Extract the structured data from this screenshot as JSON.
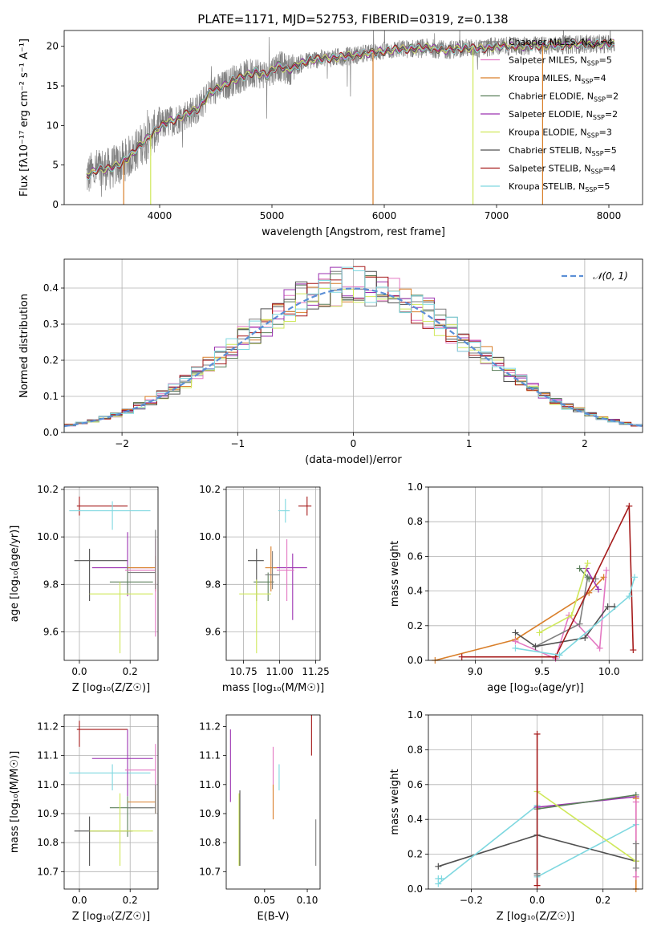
{
  "title": "PLATE=1171, MJD=52753, FIBERID=0319, z=0.138",
  "colors": {
    "chabrier_miles": "#7f7f7f",
    "salpeter_miles": "#e377c2",
    "kroupa_miles": "#d97f2a",
    "chabrier_elodie": "#5b7f5b",
    "salpeter_elodie": "#9b30b0",
    "kroupa_elodie": "#cfe85a",
    "chabrier_stelib": "#505050",
    "salpeter_stelib": "#a51a1a",
    "kroupa_stelib": "#7fd8e0",
    "normal": "#5b8fd6",
    "spectrum": "#808080"
  },
  "chart_data": [
    {
      "id": "spectrum",
      "type": "line",
      "title": "PLATE=1171, MJD=52753, FIBERID=0319, z=0.138",
      "xlabel": "wavelength [Angstrom, rest frame]",
      "ylabel": "Flux [fλ10⁻¹⁷ erg cm⁻² s⁻¹ A⁻¹]",
      "xlim": [
        3150,
        8300
      ],
      "ylim": [
        0,
        22
      ],
      "xticks": [
        4000,
        5000,
        6000,
        7000,
        8000
      ],
      "yticks": [
        0,
        5,
        10,
        15,
        20
      ],
      "grid": false,
      "legend_placement": "right",
      "legend": [
        {
          "name": "Chabrier MILES, N",
          "sub": "SSP",
          "suffix": "=4",
          "color": "chabrier_miles"
        },
        {
          "name": "Salpeter MILES, N",
          "sub": "SSP",
          "suffix": "=5",
          "color": "salpeter_miles"
        },
        {
          "name": "Kroupa MILES, N",
          "sub": "SSP",
          "suffix": "=4",
          "color": "kroupa_miles"
        },
        {
          "name": "Chabrier ELODIE, N",
          "sub": "SSP",
          "suffix": "=2",
          "color": "chabrier_elodie"
        },
        {
          "name": "Salpeter ELODIE, N",
          "sub": "SSP",
          "suffix": "=2",
          "color": "salpeter_elodie"
        },
        {
          "name": "Kroupa ELODIE, N",
          "sub": "SSP",
          "suffix": "=3",
          "color": "kroupa_elodie"
        },
        {
          "name": "Chabrier STELIB, N",
          "sub": "SSP",
          "suffix": "=5",
          "color": "chabrier_stelib"
        },
        {
          "name": "Salpeter STELIB, N",
          "sub": "SSP",
          "suffix": "=4",
          "color": "salpeter_stelib"
        },
        {
          "name": "Kroupa STELIB, N",
          "sub": "SSP",
          "suffix": "=5",
          "color": "kroupa_stelib"
        }
      ],
      "continuum": [
        [
          3350,
          3.6
        ],
        [
          3450,
          4.5
        ],
        [
          3550,
          4.5
        ],
        [
          3650,
          5.2
        ],
        [
          3750,
          6.3
        ],
        [
          3850,
          7.8
        ],
        [
          3950,
          9.2
        ],
        [
          4050,
          10.3
        ],
        [
          4150,
          10.8
        ],
        [
          4250,
          11.5
        ],
        [
          4350,
          12.2
        ],
        [
          4450,
          14.2
        ],
        [
          4550,
          14.8
        ],
        [
          4650,
          15.7
        ],
        [
          4750,
          16.2
        ],
        [
          4850,
          16.8
        ],
        [
          4950,
          16.3
        ],
        [
          5050,
          17.6
        ],
        [
          5150,
          17.0
        ],
        [
          5250,
          17.8
        ],
        [
          5350,
          18.3
        ],
        [
          5500,
          18.5
        ],
        [
          5650,
          18.7
        ],
        [
          5800,
          19.0
        ],
        [
          5950,
          19.3
        ],
        [
          6100,
          19.6
        ],
        [
          6250,
          19.7
        ],
        [
          6400,
          19.8
        ],
        [
          6550,
          19.5
        ],
        [
          6700,
          19.8
        ],
        [
          6850,
          19.7
        ],
        [
          7000,
          20.0
        ],
        [
          7200,
          20.0
        ],
        [
          7400,
          20.1
        ],
        [
          7600,
          20.2
        ],
        [
          7800,
          20.3
        ],
        [
          8050,
          20.3
        ]
      ],
      "model_dropouts_x": [
        3680,
        3920,
        5900,
        6790,
        7410
      ]
    },
    {
      "id": "residuals",
      "type": "histogram",
      "xlabel": "(data-model)/error",
      "ylabel": "Normed distribution",
      "xlim": [
        -2.5,
        2.5
      ],
      "ylim": [
        0,
        0.48
      ],
      "xticks": [
        -2,
        -1,
        0,
        1,
        2
      ],
      "yticks": [
        0.0,
        0.1,
        0.2,
        0.3,
        0.4
      ],
      "grid": true,
      "legend_placement": "top-right",
      "normal_label": "𝒩(0, 1)",
      "bin_width": 0.1,
      "bins_start": -2.5
    },
    {
      "id": "age_vs_z",
      "type": "errorbar",
      "xlabel": "Z [log₁₀(Z/Z☉)]",
      "ylabel": "age  [log₁₀(age/yr)]",
      "xlim": [
        -0.06,
        0.31
      ],
      "ylim": [
        9.48,
        10.21
      ],
      "xticks": [
        0.0,
        0.2
      ],
      "yticks": [
        9.6,
        9.8,
        10.0,
        10.2
      ],
      "grid": true,
      "points": [
        {
          "c": "salpeter_stelib",
          "x": 0.0,
          "xl": -0.01,
          "xh": 0.19,
          "y": 10.13,
          "yl": 10.09,
          "yh": 10.17
        },
        {
          "c": "kroupa_stelib",
          "x": 0.13,
          "xl": -0.04,
          "xh": 0.28,
          "y": 10.11,
          "yl": 10.03,
          "yh": 10.15
        },
        {
          "c": "chabrier_stelib",
          "x": 0.04,
          "xl": -0.02,
          "xh": 0.19,
          "y": 9.9,
          "yl": 9.73,
          "yh": 9.95
        },
        {
          "c": "salpeter_elodie",
          "x": 0.19,
          "xl": 0.05,
          "xh": 0.29,
          "y": 9.87,
          "yl": 9.75,
          "yh": 10.02
        },
        {
          "c": "chabrier_elodie",
          "x": 0.19,
          "xl": 0.12,
          "xh": 0.29,
          "y": 9.81,
          "yl": 9.76,
          "yh": 9.88
        },
        {
          "c": "kroupa_elodie",
          "x": 0.16,
          "xl": 0.04,
          "xh": 0.29,
          "y": 9.76,
          "yl": 9.51,
          "yh": 9.81
        },
        {
          "c": "kroupa_miles",
          "x": 0.3,
          "xl": 0.19,
          "xh": 0.3,
          "y": 9.87,
          "yl": 9.77,
          "yh": 9.92
        },
        {
          "c": "salpeter_miles",
          "x": 0.3,
          "xl": 0.18,
          "xh": 0.3,
          "y": 9.86,
          "yl": 9.58,
          "yh": 9.99
        },
        {
          "c": "chabrier_miles",
          "x": 0.3,
          "xl": 0.19,
          "xh": 0.3,
          "y": 9.85,
          "yl": 9.78,
          "yh": 10.03
        }
      ]
    },
    {
      "id": "age_vs_mass",
      "type": "errorbar",
      "xlabel": "mass [log₁₀(M/M☉)]",
      "ylabel": "",
      "xlim": [
        10.63,
        11.28
      ],
      "ylim": [
        9.48,
        10.21
      ],
      "xticks": [
        10.75,
        11.0,
        11.25
      ],
      "yticks": [
        9.6,
        9.8,
        10.0,
        10.2
      ],
      "grid": true,
      "points": [
        {
          "c": "salpeter_stelib",
          "x": 11.19,
          "xl": 11.13,
          "xh": 11.22,
          "y": 10.13,
          "yl": 10.09,
          "yh": 10.17
        },
        {
          "c": "kroupa_stelib",
          "x": 11.04,
          "xl": 10.99,
          "xh": 11.07,
          "y": 10.11,
          "yl": 10.06,
          "yh": 10.16
        },
        {
          "c": "chabrier_stelib",
          "x": 10.84,
          "xl": 10.78,
          "xh": 10.89,
          "y": 9.9,
          "yl": 9.73,
          "yh": 9.95
        },
        {
          "c": "salpeter_elodie",
          "x": 11.09,
          "xl": 10.96,
          "xh": 11.19,
          "y": 9.87,
          "yl": 9.65,
          "yh": 9.93
        },
        {
          "c": "chabrier_elodie",
          "x": 10.92,
          "xl": 10.82,
          "xh": 10.96,
          "y": 9.81,
          "yl": 9.73,
          "yh": 9.85
        },
        {
          "c": "kroupa_elodie",
          "x": 10.84,
          "xl": 10.72,
          "xh": 10.94,
          "y": 9.76,
          "yl": 9.51,
          "yh": 9.82
        },
        {
          "c": "kroupa_miles",
          "x": 10.94,
          "xl": 10.9,
          "xh": 10.98,
          "y": 9.87,
          "yl": 9.77,
          "yh": 9.96
        },
        {
          "c": "salpeter_miles",
          "x": 11.05,
          "xl": 10.98,
          "xh": 11.1,
          "y": 9.86,
          "yl": 9.73,
          "yh": 9.99
        },
        {
          "c": "chabrier_miles",
          "x": 10.95,
          "xl": 10.9,
          "xh": 11.0,
          "y": 9.84,
          "yl": 9.78,
          "yh": 9.94
        }
      ]
    },
    {
      "id": "massweight_vs_age",
      "type": "line",
      "xlabel": "age  [log₁₀(age/yr)]",
      "ylabel": "mass weight",
      "xlim": [
        8.65,
        10.25
      ],
      "ylim": [
        0,
        1.0
      ],
      "xticks": [
        9.0,
        9.5,
        10.0
      ],
      "yticks": [
        0.0,
        0.2,
        0.4,
        0.6,
        0.8,
        1.0
      ],
      "grid": true,
      "series": [
        {
          "c": "kroupa_miles",
          "pts": [
            [
              8.7,
              0.0
            ],
            [
              9.3,
              0.12
            ],
            [
              9.85,
              0.39
            ],
            [
              9.96,
              0.48
            ]
          ]
        },
        {
          "c": "salpeter_miles",
          "pts": [
            [
              9.3,
              0.11
            ],
            [
              9.6,
              0.01
            ],
            [
              9.7,
              0.26
            ],
            [
              9.93,
              0.07
            ],
            [
              9.98,
              0.52
            ]
          ]
        },
        {
          "c": "chabrier_miles",
          "pts": [
            [
              9.45,
              0.08
            ],
            [
              9.78,
              0.21
            ],
            [
              9.84,
              0.48
            ],
            [
              9.9,
              0.47
            ]
          ]
        },
        {
          "c": "chabrier_elodie",
          "pts": [
            [
              9.78,
              0.53
            ],
            [
              9.85,
              0.47
            ]
          ]
        },
        {
          "c": "salpeter_elodie",
          "pts": [
            [
              9.83,
              0.53
            ],
            [
              9.92,
              0.41
            ]
          ]
        },
        {
          "c": "kroupa_elodie",
          "pts": [
            [
              9.48,
              0.16
            ],
            [
              9.72,
              0.26
            ],
            [
              9.84,
              0.56
            ]
          ]
        },
        {
          "c": "chabrier_stelib",
          "pts": [
            [
              9.3,
              0.16
            ],
            [
              9.45,
              0.08
            ],
            [
              9.82,
              0.13
            ],
            [
              9.99,
              0.31
            ],
            [
              10.04,
              0.31
            ]
          ]
        },
        {
          "c": "salpeter_stelib",
          "pts": [
            [
              8.9,
              0.02
            ],
            [
              9.6,
              0.02
            ],
            [
              10.15,
              0.89
            ],
            [
              10.18,
              0.06
            ]
          ]
        },
        {
          "c": "kroupa_stelib",
          "pts": [
            [
              9.3,
              0.07
            ],
            [
              9.63,
              0.03
            ],
            [
              10.15,
              0.37
            ],
            [
              10.19,
              0.48
            ]
          ]
        }
      ]
    },
    {
      "id": "mass_vs_z",
      "type": "errorbar",
      "xlabel": "Z [log₁₀(Z/Z☉)]",
      "ylabel": "mass [log₁₀(M/M☉)]",
      "xlim": [
        -0.06,
        0.31
      ],
      "ylim": [
        10.64,
        11.24
      ],
      "xticks": [
        0.0,
        0.2
      ],
      "yticks": [
        10.7,
        10.8,
        10.9,
        11.0,
        11.1,
        11.2
      ],
      "grid": true,
      "points": [
        {
          "c": "salpeter_stelib",
          "x": 0.0,
          "xl": -0.01,
          "xh": 0.19,
          "y": 11.19,
          "yl": 11.13,
          "yh": 11.22
        },
        {
          "c": "kroupa_stelib",
          "x": 0.13,
          "xl": -0.04,
          "xh": 0.28,
          "y": 11.04,
          "yl": 10.98,
          "yh": 11.07
        },
        {
          "c": "chabrier_stelib",
          "x": 0.04,
          "xl": -0.02,
          "xh": 0.21,
          "y": 10.84,
          "yl": 10.72,
          "yh": 10.89
        },
        {
          "c": "salpeter_elodie",
          "x": 0.19,
          "xl": 0.05,
          "xh": 0.29,
          "y": 11.09,
          "yl": 10.96,
          "yh": 11.19
        },
        {
          "c": "chabrier_elodie",
          "x": 0.19,
          "xl": 0.12,
          "xh": 0.29,
          "y": 10.92,
          "yl": 10.82,
          "yh": 10.96
        },
        {
          "c": "kroupa_elodie",
          "x": 0.16,
          "xl": 0.04,
          "xh": 0.29,
          "y": 10.84,
          "yl": 10.72,
          "yh": 10.97
        },
        {
          "c": "kroupa_miles",
          "x": 0.3,
          "xl": 0.19,
          "xh": 0.3,
          "y": 10.94,
          "yl": 10.9,
          "yh": 10.98
        },
        {
          "c": "salpeter_miles",
          "x": 0.3,
          "xl": 0.18,
          "xh": 0.3,
          "y": 11.05,
          "yl": 10.98,
          "yh": 11.14
        },
        {
          "c": "chabrier_miles",
          "x": 0.3,
          "xl": 0.19,
          "xh": 0.3,
          "y": 10.92,
          "yl": 10.9,
          "yh": 11.0
        }
      ]
    },
    {
      "id": "mass_vs_ebv",
      "type": "errorbar",
      "xlabel": "E(B-V)",
      "ylabel": "",
      "xlim": [
        0.005,
        0.115
      ],
      "ylim": [
        10.64,
        11.24
      ],
      "xticks": [
        0.05,
        0.1
      ],
      "yticks": [
        10.7,
        10.8,
        10.9,
        11.0,
        11.1,
        11.2
      ],
      "grid": false,
      "points": [
        {
          "c": "salpeter_elodie",
          "x": 0.01,
          "xl": 0.01,
          "xh": 0.01,
          "y": 11.09,
          "yl": 10.94,
          "yh": 11.19
        },
        {
          "c": "kroupa_elodie",
          "x": 0.02,
          "xl": 0.02,
          "xh": 0.02,
          "y": 10.84,
          "yl": 10.72,
          "yh": 10.97
        },
        {
          "c": "chabrier_stelib",
          "x": 0.021,
          "xl": 0.021,
          "xh": 0.021,
          "y": 10.84,
          "yl": 10.72,
          "yh": 10.98
        },
        {
          "c": "salpeter_miles",
          "x": 0.06,
          "xl": 0.06,
          "xh": 0.06,
          "y": 11.05,
          "yl": 10.98,
          "yh": 11.13
        },
        {
          "c": "kroupa_miles",
          "x": 0.06,
          "xl": 0.06,
          "xh": 0.06,
          "y": 10.94,
          "yl": 10.88,
          "yh": 11.0
        },
        {
          "c": "kroupa_stelib",
          "x": 0.067,
          "xl": 0.067,
          "xh": 0.067,
          "y": 11.04,
          "yl": 10.98,
          "yh": 11.07
        },
        {
          "c": "salpeter_stelib",
          "x": 0.105,
          "xl": 0.105,
          "xh": 0.105,
          "y": 11.19,
          "yl": 11.1,
          "yh": 11.24
        },
        {
          "c": "chabrier_miles",
          "x": 0.11,
          "xl": 0.11,
          "xh": 0.11,
          "y": 10.8,
          "yl": 10.72,
          "yh": 10.88
        }
      ]
    },
    {
      "id": "massweight_vs_z",
      "type": "line",
      "xlabel": "Z [log₁₀(Z/Z☉)]",
      "ylabel": "mass weight",
      "xlim": [
        -0.33,
        0.32
      ],
      "ylim": [
        0,
        1.0
      ],
      "xticks": [
        -0.2,
        0.0,
        0.2
      ],
      "yticks": [
        0.0,
        0.2,
        0.4,
        0.6,
        0.8,
        1.0
      ],
      "grid": true,
      "series": [
        {
          "c": "chabrier_stelib",
          "pts": [
            [
              -0.3,
              0.13
            ],
            [
              0.0,
              0.31
            ],
            [
              0.3,
              0.16
            ]
          ]
        },
        {
          "c": "kroupa_stelib",
          "pts": [
            [
              -0.3,
              0.03
            ],
            [
              0.0,
              0.48
            ],
            [
              0.0,
              0.07
            ],
            [
              0.3,
              0.37
            ]
          ]
        },
        {
          "c": "kroupa_stelib",
          "pts": [
            [
              -0.3,
              0.06
            ],
            [
              -0.29,
              0.06
            ]
          ]
        },
        {
          "c": "salpeter_elodie",
          "pts": [
            [
              0.0,
              0.47
            ],
            [
              0.3,
              0.53
            ]
          ]
        },
        {
          "c": "chabrier_elodie",
          "pts": [
            [
              0.0,
              0.46
            ],
            [
              0.3,
              0.54
            ]
          ]
        },
        {
          "c": "kroupa_elodie",
          "pts": [
            [
              0.0,
              0.56
            ],
            [
              0.3,
              0.16
            ]
          ]
        },
        {
          "c": "salpeter_stelib",
          "pts": [
            [
              0.0,
              0.89
            ],
            [
              0.0,
              0.02
            ]
          ]
        },
        {
          "c": "kroupa_miles",
          "pts": [
            [
              0.3,
              0.0
            ],
            [
              0.3,
              0.52
            ]
          ]
        },
        {
          "c": "salpeter_miles",
          "pts": [
            [
              0.3,
              0.07
            ],
            [
              0.3,
              0.5
            ]
          ]
        },
        {
          "c": "chabrier_miles",
          "pts": [
            [
              0.3,
              0.12
            ],
            [
              0.3,
              0.26
            ]
          ]
        },
        {
          "c": "chabrier_miles",
          "pts": [
            [
              0.0,
              0.08
            ],
            [
              0.0,
              0.09
            ]
          ]
        }
      ]
    }
  ]
}
